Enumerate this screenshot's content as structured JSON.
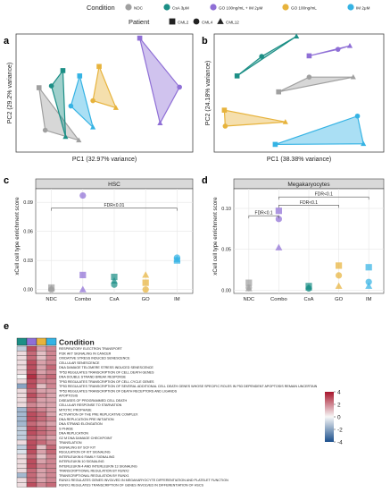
{
  "legend": {
    "condition_title": "Condition",
    "conditions": [
      {
        "name": "NDC",
        "color": "#a0a0a0"
      },
      {
        "name": "CsA 3μM",
        "color": "#1c8f86"
      },
      {
        "name": "GO 100ng/mL + IM 2μM",
        "color": "#8f6fd6"
      },
      {
        "name": "GO 100ng/mL",
        "color": "#e7b33c"
      },
      {
        "name": "IM 2μM",
        "color": "#35b3e4"
      }
    ],
    "patient_title": "Patient",
    "patients": [
      {
        "name": "CML2",
        "shape": "square"
      },
      {
        "name": "CML4",
        "shape": "circle"
      },
      {
        "name": "CML12",
        "shape": "triangle"
      }
    ]
  },
  "panel_labels": {
    "a": "a",
    "b": "b",
    "c": "c",
    "d": "d",
    "e": "e"
  },
  "chart_data": [
    {
      "id": "a",
      "type": "scatter",
      "xlabel": "PC1 (32.97% variance)",
      "ylabel": "PC2 (29.2% variance)",
      "xlim": [
        -1.0,
        1.0
      ],
      "ylim": [
        -1.0,
        1.0
      ],
      "grid": false,
      "series": [
        {
          "name": "NDC",
          "color": "#a0a0a0",
          "points": [
            [
              -0.74,
              0.09
            ],
            [
              -0.67,
              -0.63
            ],
            [
              -0.29,
              -0.8
            ]
          ]
        },
        {
          "name": "CsA 3μM",
          "color": "#1c8f86",
          "points": [
            [
              -0.47,
              0.38
            ],
            [
              -0.6,
              0.12
            ],
            [
              -0.44,
              -0.74
            ]
          ]
        },
        {
          "name": "GO 100ng/mL + IM 2μM",
          "color": "#8f6fd6",
          "points": [
            [
              0.4,
              0.93
            ],
            [
              0.85,
              0.1
            ],
            [
              0.63,
              -0.51
            ]
          ]
        },
        {
          "name": "GO 100ng/mL",
          "color": "#e7b33c",
          "points": [
            [
              -0.06,
              0.45
            ],
            [
              -0.13,
              -0.13
            ],
            [
              0.13,
              -0.25
            ]
          ]
        },
        {
          "name": "IM 2μM",
          "color": "#35b3e4",
          "points": [
            [
              -0.28,
              0.29
            ],
            [
              -0.38,
              -0.22
            ],
            [
              -0.13,
              -0.58
            ]
          ]
        }
      ]
    },
    {
      "id": "b",
      "type": "scatter",
      "xlabel": "PC1 (38.38% variance)",
      "ylabel": "PC2 (24.18% variance)",
      "xlim": [
        -1.0,
        1.0
      ],
      "ylim": [
        -1.0,
        1.0
      ],
      "grid": false,
      "series": [
        {
          "name": "NDC",
          "color": "#a0a0a0",
          "points": [
            [
              -0.24,
              0.02
            ],
            [
              0.12,
              0.27
            ],
            [
              0.64,
              0.27
            ]
          ]
        },
        {
          "name": "CsA 3μM",
          "color": "#1c8f86",
          "points": [
            [
              -0.73,
              0.29
            ],
            [
              -0.44,
              0.62
            ],
            [
              -0.03,
              0.96
            ]
          ]
        },
        {
          "name": "GO 100ng/mL + IM 2μM",
          "color": "#8f6fd6",
          "points": [
            [
              0.12,
              0.63
            ],
            [
              0.46,
              0.74
            ],
            [
              0.6,
              0.8
            ]
          ]
        },
        {
          "name": "GO 100ng/mL",
          "color": "#e7b33c",
          "points": [
            [
              -0.88,
              -0.29
            ],
            [
              -0.87,
              -0.56
            ],
            [
              -0.16,
              -0.49
            ]
          ]
        },
        {
          "name": "IM 2μM",
          "color": "#35b3e4",
          "points": [
            [
              -0.28,
              -0.87
            ],
            [
              0.69,
              -0.39
            ],
            [
              0.76,
              -0.86
            ]
          ]
        }
      ]
    },
    {
      "id": "c",
      "type": "scatter",
      "facet_title": "HSC",
      "xlabel": "",
      "ylabel": "xCell cell type enrichment score",
      "categories": [
        "NDC",
        "Combo",
        "CsA",
        "GO",
        "IM"
      ],
      "ylim": [
        -0.004,
        0.104
      ],
      "yticks": [
        0.0,
        0.03,
        0.06,
        0.09
      ],
      "ytick_labels": [
        "0.00",
        "0.03",
        "0.06",
        "0.09"
      ],
      "grid": true,
      "annotations": [
        {
          "text": "FDR<0.01",
          "from": "NDC",
          "to": "IM",
          "y": 0.084
        }
      ],
      "series": [
        {
          "category": "NDC",
          "color": "#a0a0a0",
          "points": [
            {
              "shape": "square",
              "y": 0.002
            },
            {
              "shape": "circle",
              "y": 0.0
            },
            {
              "shape": "triangle",
              "y": 0.001
            }
          ]
        },
        {
          "category": "Combo",
          "color": "#8f6fd6",
          "points": [
            {
              "shape": "square",
              "y": 0.015
            },
            {
              "shape": "circle",
              "y": 0.097
            },
            {
              "shape": "triangle",
              "y": 0.0
            }
          ]
        },
        {
          "category": "CsA",
          "color": "#1c8f86",
          "points": [
            {
              "shape": "square",
              "y": 0.013
            },
            {
              "shape": "circle",
              "y": 0.005
            },
            {
              "shape": "triangle",
              "y": 0.009
            }
          ]
        },
        {
          "category": "GO",
          "color": "#e7b33c",
          "points": [
            {
              "shape": "square",
              "y": 0.007
            },
            {
              "shape": "circle",
              "y": 0.0
            },
            {
              "shape": "triangle",
              "y": 0.015
            }
          ]
        },
        {
          "category": "IM",
          "color": "#35b3e4",
          "points": [
            {
              "shape": "square",
              "y": 0.03
            },
            {
              "shape": "circle",
              "y": 0.033
            },
            {
              "shape": "triangle",
              "y": 0.031
            }
          ]
        }
      ]
    },
    {
      "id": "d",
      "type": "scatter",
      "facet_title": "Megakaryocytes",
      "xlabel": "",
      "ylabel": "xCell cell type enrichment score",
      "categories": [
        "NDC",
        "Combo",
        "CsA",
        "GO",
        "IM"
      ],
      "ylim": [
        -0.004,
        0.124
      ],
      "yticks": [
        0.0,
        0.05,
        0.1
      ],
      "ytick_labels": [
        "0.00",
        "0.05",
        "0.10"
      ],
      "grid": true,
      "annotations": [
        {
          "text": "FDR<0.1",
          "from": "NDC",
          "to": "Combo",
          "y": 0.091
        },
        {
          "text": "FDR<0.1",
          "from": "Combo",
          "to": "GO",
          "y": 0.104
        },
        {
          "text": "FDR<0.1",
          "from": "Combo",
          "to": "IM",
          "y": 0.114
        }
      ],
      "series": [
        {
          "category": "NDC",
          "color": "#a0a0a0",
          "points": [
            {
              "shape": "square",
              "y": 0.009
            },
            {
              "shape": "circle",
              "y": 0.003
            },
            {
              "shape": "triangle",
              "y": 0.002
            }
          ]
        },
        {
          "category": "Combo",
          "color": "#8f6fd6",
          "points": [
            {
              "shape": "square",
              "y": 0.097
            },
            {
              "shape": "circle",
              "y": 0.087
            },
            {
              "shape": "triangle",
              "y": 0.052
            }
          ]
        },
        {
          "category": "CsA",
          "color": "#1c8f86",
          "points": [
            {
              "shape": "square",
              "y": 0.005
            },
            {
              "shape": "circle",
              "y": 0.002
            },
            {
              "shape": "triangle",
              "y": 0.003
            }
          ]
        },
        {
          "category": "GO",
          "color": "#e7b33c",
          "points": [
            {
              "shape": "square",
              "y": 0.03
            },
            {
              "shape": "circle",
              "y": 0.018
            },
            {
              "shape": "triangle",
              "y": 0.005
            }
          ]
        },
        {
          "category": "IM",
          "color": "#35b3e4",
          "points": [
            {
              "shape": "square",
              "y": 0.028
            },
            {
              "shape": "circle",
              "y": 0.01
            },
            {
              "shape": "triangle",
              "y": 0.005
            }
          ]
        }
      ]
    },
    {
      "id": "e",
      "type": "heatmap",
      "title": "Condition",
      "columns": [
        "CsA 3μM",
        "GO 100ng/mL + IM 2μM",
        "GO 100ng/mL",
        "IM 2μM"
      ],
      "column_colors": [
        "#1c8f86",
        "#8f6fd6",
        "#e7b33c",
        "#35b3e4"
      ],
      "colorbar": {
        "ticks": [
          4,
          2,
          0,
          -2,
          -4
        ],
        "tick_labels": [
          "4",
          "2",
          "0",
          "-2",
          "-4"
        ],
        "high": "#a8152c",
        "mid": "#f7f7f7",
        "low": "#1a4f8c"
      },
      "rows": [
        "RESPIRATORY ELECTRON TRANSPORT",
        "PI3K AKT SIGNALING IN CANCER",
        "OXIDATIVE STRESS INDUCED SENESCENCE",
        "CELLULAR SENESCENCE",
        "DNA DAMAGE TELOMERE STRESS INDUCED SENESCENCE",
        "TP53 REGULATES TRANSCRIPTION OF CELL DEATH GENES",
        "DNA DOUBLE STRAND BREAK RESPONSE",
        "TP53 REGULATES TRANSCRIPTION OF CELL CYCLE GENES",
        "TP53 REGULATES TRANSCRIPTION OF SEVERAL ADDITIONAL CELL DEATH GENES WHOSE SPECIFIC ROLES IN P53 DEPENDENT APOPTOSIS REMAIN UNCERTAIN",
        "TP53 REGULATES TRANSCRIPTION OF DEATH RECEPTORS AND LIGANDS",
        "APOPTOSIS",
        "DISEASES OF PROGRAMMED CELL DEATH",
        "CELLULAR RESPONSE TO STARVATION",
        "MITOTIC PROPHASE",
        "ACTIVATION OF THE PRE REPLICATIVE COMPLEX",
        "DNA REPLICATION PRE INITIATION",
        "DNA STRAND ELONGATION",
        "S PHASE",
        "DNA REPLICATION",
        "G2 M DNA DAMAGE CHECKPOINT",
        "TRANSLATION",
        "SIGNALING BY SCF KIT",
        "REGULATION OF KIT SIGNALING",
        "INTERLEUKIN 6 FAMILY SIGNALING",
        "INTERLEUKIN 10 SIGNALING",
        "INTERLEUKIN 4 AND INTERLEUKIN 13 SIGNALING",
        "TRANSCRIPTIONAL REGULATION BY RUNX2",
        "TRANSCRIPTIONAL REGULATION BY RUNX1",
        "RUNX1 REGULATES GENES INVOLVED IN MEGAKARYOCYTE DIFFERENTIATION AND PLATELET FUNCTION",
        "RUNX1 REGULATES TRANSCRIPTION OF GENES INVOLVED IN DIFFERENTIATION OF HSCS"
      ],
      "values": [
        [
          -1.0,
          3.0,
          1.5,
          2.0
        ],
        [
          0.5,
          2.5,
          1.0,
          2.0
        ],
        [
          0.5,
          2.5,
          1.0,
          2.0
        ],
        [
          0.5,
          3.0,
          1.5,
          2.0
        ],
        [
          0.5,
          3.0,
          1.5,
          2.5
        ],
        [
          0.5,
          3.0,
          1.5,
          2.0
        ],
        [
          0.0,
          3.5,
          2.0,
          2.5
        ],
        [
          0.5,
          3.0,
          2.0,
          2.0
        ],
        [
          -2.0,
          3.0,
          1.0,
          2.0
        ],
        [
          0.5,
          2.5,
          1.5,
          1.5
        ],
        [
          0.5,
          3.0,
          2.0,
          1.5
        ],
        [
          0.5,
          2.5,
          1.5,
          1.5
        ],
        [
          0.5,
          2.0,
          1.5,
          1.5
        ],
        [
          -1.5,
          2.5,
          2.0,
          1.5
        ],
        [
          -1.5,
          3.0,
          2.5,
          1.5
        ],
        [
          -1.5,
          3.0,
          2.5,
          2.0
        ],
        [
          -1.5,
          2.5,
          2.0,
          1.5
        ],
        [
          -1.0,
          3.0,
          2.5,
          2.0
        ],
        [
          -1.0,
          3.0,
          2.5,
          2.0
        ],
        [
          -1.0,
          2.5,
          2.0,
          1.5
        ],
        [
          0.5,
          3.0,
          2.5,
          2.0
        ],
        [
          -1.0,
          3.0,
          1.0,
          2.5
        ],
        [
          -0.5,
          3.0,
          1.5,
          2.5
        ],
        [
          0.5,
          2.5,
          1.0,
          2.0
        ],
        [
          0.5,
          3.0,
          1.5,
          2.0
        ],
        [
          0.5,
          3.0,
          2.0,
          2.0
        ],
        [
          0.5,
          2.5,
          1.5,
          2.0
        ],
        [
          -1.5,
          2.5,
          1.5,
          2.0
        ],
        [
          0.5,
          2.5,
          1.5,
          2.0
        ],
        [
          0.5,
          3.0,
          2.0,
          2.5
        ]
      ]
    }
  ]
}
